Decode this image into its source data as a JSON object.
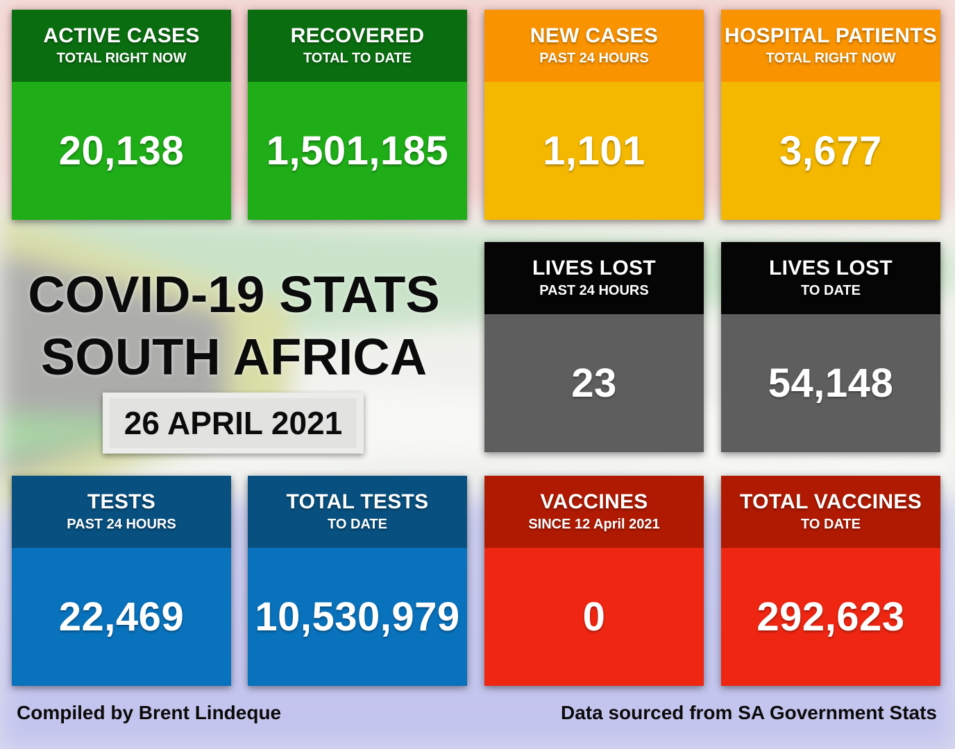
{
  "colors": {
    "green_head": "#0a6e10",
    "green_body": "#1fae18",
    "orange_head": "#f99300",
    "orange_body": "#f5b800",
    "black_head": "#050505",
    "gray_body": "#5e5e5e",
    "blue_head": "#08507f",
    "blue_body": "#0972bc",
    "red_head": "#b01a02",
    "red_body": "#ee2612"
  },
  "cards": [
    {
      "title": "ACTIVE CASES",
      "subtitle": "TOTAL RIGHT NOW",
      "value": "20,138",
      "color": "green"
    },
    {
      "title": "RECOVERED",
      "subtitle": "TOTAL TO DATE",
      "value": "1,501,185",
      "color": "green"
    },
    {
      "title": "NEW CASES",
      "subtitle": "PAST 24 HOURS",
      "value": "1,101",
      "color": "orange"
    },
    {
      "title": "HOSPITAL PATIENTS",
      "subtitle": "TOTAL RIGHT NOW",
      "value": "3,677",
      "color": "orange"
    },
    {
      "title": "LIVES LOST",
      "subtitle": "PAST 24 HOURS",
      "value": "23",
      "color": "gray"
    },
    {
      "title": "LIVES LOST",
      "subtitle": "TO DATE",
      "value": "54,148",
      "color": "gray"
    },
    {
      "title": "TESTS",
      "subtitle": "PAST 24 HOURS",
      "value": "22,469",
      "color": "blue"
    },
    {
      "title": "TOTAL TESTS",
      "subtitle": "TO DATE",
      "value": "10,530,979",
      "color": "blue"
    },
    {
      "title": "VACCINES",
      "subtitle": "SINCE 12 April 2021",
      "value": "0",
      "color": "red"
    },
    {
      "title": "TOTAL VACCINES",
      "subtitle": "TO DATE",
      "value": "292,623",
      "color": "red"
    }
  ],
  "heading": {
    "line1": "COVID-19 STATS",
    "line2": "SOUTH AFRICA"
  },
  "date": "26 APRIL 2021",
  "footer": {
    "left": "Compiled by Brent Lindeque",
    "right": "Data sourced from SA Government Stats"
  }
}
